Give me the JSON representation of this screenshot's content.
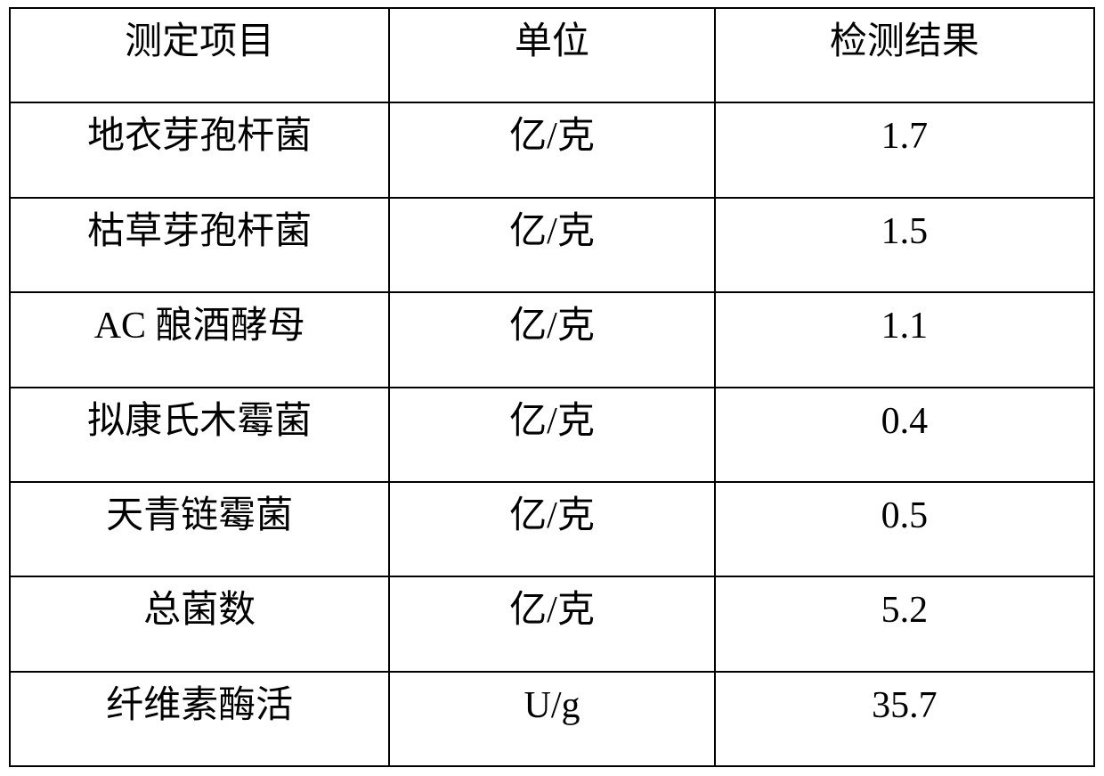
{
  "table": {
    "columns": [
      "测定项目",
      "单位",
      "检测结果"
    ],
    "rows": [
      [
        "地衣芽孢杆菌",
        "亿/克",
        "1.7"
      ],
      [
        "枯草芽孢杆菌",
        "亿/克",
        "1.5"
      ],
      [
        "AC 酿酒酵母",
        "亿/克",
        "1.1"
      ],
      [
        "拟康氏木霉菌",
        "亿/克",
        "0.4"
      ],
      [
        "天青链霉菌",
        "亿/克",
        "0.5"
      ],
      [
        "总菌数",
        "亿/克",
        "5.2"
      ],
      [
        "纤维素酶活",
        "U/g",
        "35.7"
      ]
    ],
    "border_color": "#000000",
    "background_color": "#ffffff",
    "text_color": "#000000",
    "font_size_pt": 32,
    "column_widths_pct": [
      35,
      30,
      35
    ],
    "alignment": "center"
  }
}
